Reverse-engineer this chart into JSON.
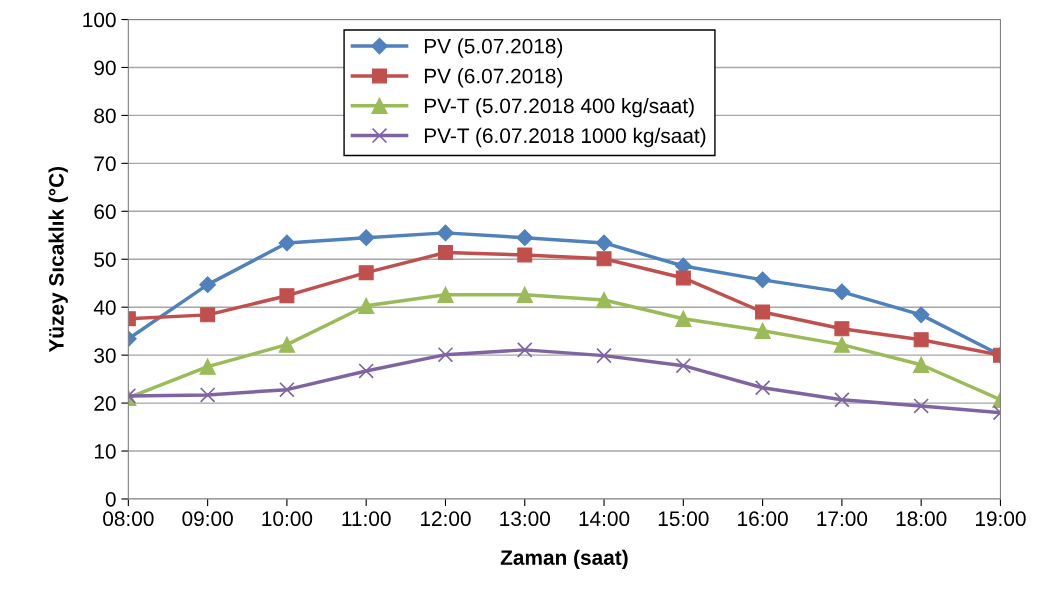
{
  "chart_data": {
    "type": "line",
    "xlabel": "Zaman (saat)",
    "ylabel": "Yüzey Sıcaklık (°C)",
    "categories": [
      "08:00",
      "09:00",
      "10:00",
      "11:00",
      "12:00",
      "13:00",
      "14:00",
      "15:00",
      "16:00",
      "17:00",
      "18:00",
      "19:00"
    ],
    "ylim": [
      0,
      100
    ],
    "yticks": [
      0,
      10,
      20,
      30,
      40,
      50,
      60,
      70,
      80,
      90,
      100
    ],
    "grid": "y",
    "legend": "top",
    "line_style": "solid",
    "series": [
      {
        "name": "PV (5.07.2018)",
        "color": "#4f81bd",
        "marker": "diamond",
        "values": [
          33.4,
          44.7,
          53.4,
          54.5,
          55.5,
          54.5,
          53.4,
          48.6,
          45.7,
          43.2,
          38.4,
          30.0
        ]
      },
      {
        "name": "PV (6.07.2018)",
        "color": "#c0504d",
        "marker": "square",
        "values": [
          37.6,
          38.4,
          42.4,
          47.2,
          51.4,
          50.9,
          50.1,
          46.1,
          39.0,
          35.5,
          33.2,
          30.0
        ]
      },
      {
        "name": "PV-T (5.07.2018 400 kg/saat)",
        "color": "#9bbb59",
        "marker": "triangle",
        "values": [
          21.1,
          27.6,
          32.2,
          40.3,
          42.6,
          42.6,
          41.5,
          37.6,
          35.1,
          32.2,
          28.0,
          20.7
        ]
      },
      {
        "name": "PV-T (6.07.2018 1000 kg/saat)",
        "color": "#8064a2",
        "marker": "cross",
        "values": [
          21.5,
          21.7,
          22.8,
          26.7,
          30.1,
          31.1,
          29.9,
          27.8,
          23.2,
          20.7,
          19.4,
          18.0
        ]
      }
    ]
  }
}
